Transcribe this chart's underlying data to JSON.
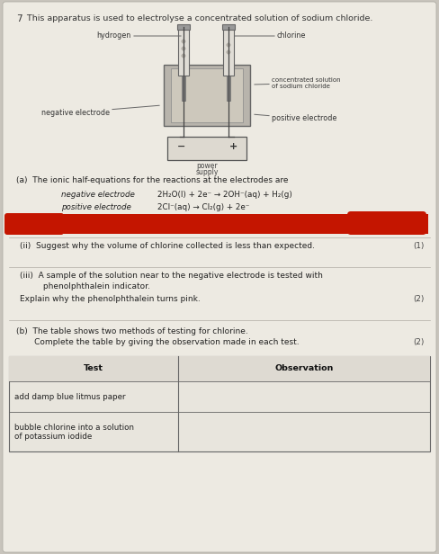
{
  "bg_color": "#c8c4bc",
  "paper_color": "#edeae2",
  "title_num": "7",
  "title_text": "  This apparatus is used to electrolyse a concentrated solution of sodium chloride.",
  "question_a": "(a)  The ionic half-equations for the reactions at the electrodes are",
  "neg_eq_label": "negative electrode",
  "neg_eq": "2H₂O(l) + 2e⁻ → 2OH⁻(aq) + H₂(g)",
  "pos_eq_label": "positive electrode",
  "pos_eq": "2Cl⁻(aq) → Cl₂(g) + 2e⁻",
  "q_ii": "(ii)  Suggest why the volume of chlorine collected is less than expected.",
  "q_ii_marks": "(1)",
  "q_iii_a": "(iii)  A sample of the solution near to the negative electrode is tested with",
  "q_iii_b": "         phenolphthalein indicator.",
  "q_iii_c": "Explain why the phenolphthalein turns pink.",
  "q_iii_marks": "(2)",
  "q_b_a": "(b)  The table shows two methods of testing for chlorine.",
  "q_b_b": "       Complete the table by giving the observation made in each test.",
  "q_b_marks": "(2)",
  "table_header_test": "Test",
  "table_header_obs": "Observation",
  "table_row1": "add damp blue litmus paper",
  "table_row2a": "bubble chlorine into a solution",
  "table_row2b": "of potassium iodide",
  "red_bar_color": "#c41500",
  "label_hydrogen": "hydrogen",
  "label_chlorine": "chlorine",
  "label_conc_sol_a": "concentrated solution",
  "label_conc_sol_b": "of sodium chloride",
  "label_neg_el": "negative electrode",
  "label_pos_el": "positive electrode",
  "label_power": "power",
  "label_supply": "supply"
}
